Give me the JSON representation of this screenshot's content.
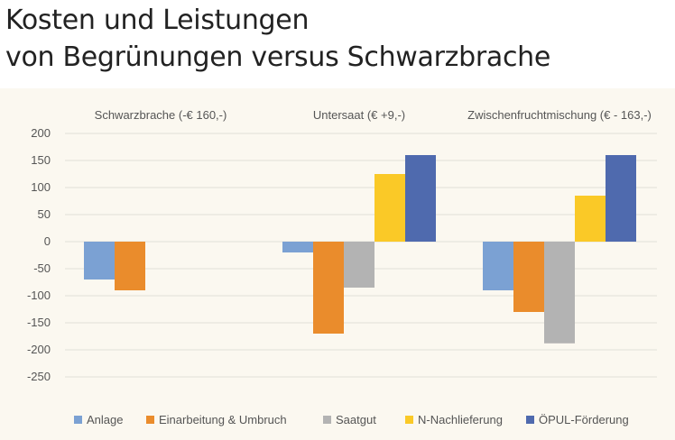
{
  "title_line1": "Kosten und Leistungen",
  "title_line2": "von Begrünungen versus Schwarzbrache",
  "chart_data": {
    "type": "bar",
    "title": "Kosten und Leistungen von Begrünungen versus Schwarzbrache",
    "categories": [
      "Schwarzbrache (-€ 160,-)",
      "Untersaat (€ +9,-)",
      "Zwischenfruchtmischung (€ - 163,-)"
    ],
    "series": [
      {
        "name": "Anlage",
        "color": "#7ba1d3",
        "values": [
          -70,
          -20,
          -90
        ]
      },
      {
        "name": "Einarbeitung & Umbruch",
        "color": "#ea8c2c",
        "values": [
          -90,
          -170,
          -130
        ]
      },
      {
        "name": "Saatgut",
        "color": "#b3b3b3",
        "values": [
          null,
          -85,
          -188
        ]
      },
      {
        "name": "N-Nachlieferung",
        "color": "#fac927",
        "values": [
          null,
          125,
          85
        ]
      },
      {
        "name": "ÖPUL-Förderung",
        "color": "#4f6aae",
        "values": [
          null,
          160,
          160
        ]
      }
    ],
    "yticks": [
      "200",
      "150",
      "100",
      "50",
      "0",
      "-50",
      "-100",
      "-150",
      "-200",
      "-250"
    ],
    "ylim": [
      -250,
      200
    ],
    "grid": true,
    "legend": "bottom"
  }
}
